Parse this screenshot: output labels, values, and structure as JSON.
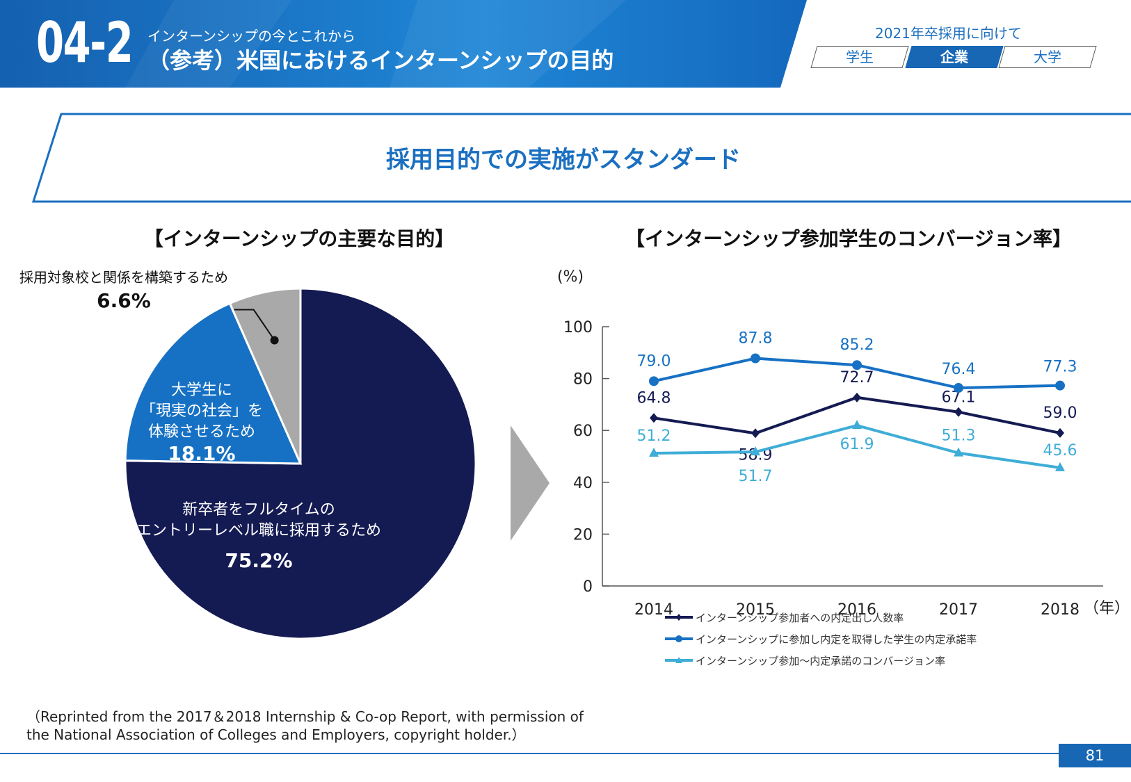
{
  "header": {
    "section_number": "04-2",
    "subtitle": "インターンシップの今とこれから",
    "title": "（参考）米国におけるインターンシップの目的",
    "recruit_label": "2021年卒採用に向けて",
    "tabs": [
      {
        "label": "学生",
        "active": false
      },
      {
        "label": "企業",
        "active": true
      },
      {
        "label": "大学",
        "active": false
      }
    ]
  },
  "headline": "採用目的での実施がスタンダード",
  "pie_title": "【インターンシップの主要な目的】",
  "line_title": "【インターンシップ参加学生のコンバージョン率】",
  "chart_data": [
    {
      "type": "pie",
      "title": "【インターンシップの主要な目的】",
      "slices": [
        {
          "label_lines": [
            "新卒者をフルタイムの",
            "エントリーレベル職に採用するため"
          ],
          "value": 75.2,
          "value_label": "75.2%",
          "color": "#141a52"
        },
        {
          "label_lines": [
            "大学生に",
            "「現実の社会」を",
            "体験させるため"
          ],
          "value": 18.1,
          "value_label": "18.1%",
          "color": "#1671c4"
        },
        {
          "label_lines": [
            "採用対象校と関係を構築するため"
          ],
          "value": 6.6,
          "value_label": "6.6%",
          "color": "#a9a9aa"
        }
      ]
    },
    {
      "type": "line",
      "title": "【インターンシップ参加学生のコンバージョン率】",
      "ylabel": "(%)",
      "xlabel": "（年）",
      "ylim": [
        0,
        100
      ],
      "yticks": [
        0,
        20,
        40,
        60,
        80,
        100
      ],
      "categories": [
        "2014",
        "2015",
        "2016",
        "2017",
        "2018"
      ],
      "series": [
        {
          "name": "インターンシップ参加者への内定出し人数率",
          "values": [
            64.8,
            58.9,
            72.7,
            67.1,
            59.0
          ],
          "labels": [
            "64.8",
            "58.9",
            "72.7",
            "67.1",
            "59.0"
          ],
          "color": "#141a52",
          "marker": "diamond"
        },
        {
          "name": "インターンシップに参加し内定を取得した学生の内定承諾率",
          "values": [
            79.0,
            87.8,
            85.2,
            76.4,
            77.3
          ],
          "labels": [
            "79.0",
            "87.8",
            "85.2",
            "76.4",
            "77.3"
          ],
          "color": "#1671c4",
          "marker": "circle"
        },
        {
          "name": "インターンシップ参加～内定承諾のコンバージョン率",
          "values": [
            51.2,
            51.7,
            61.9,
            51.3,
            45.6
          ],
          "labels": [
            "51.2",
            "51.7",
            "61.9",
            "51.3",
            "45.6"
          ],
          "color": "#3fadd7",
          "marker": "triangle"
        }
      ]
    }
  ],
  "source_lines": [
    "（Reprinted from the 2017＆2018 Internship & Co-op Report, with permission of",
    "the National Association of Colleges and Employers, copyright holder.）"
  ],
  "page_number": "81"
}
